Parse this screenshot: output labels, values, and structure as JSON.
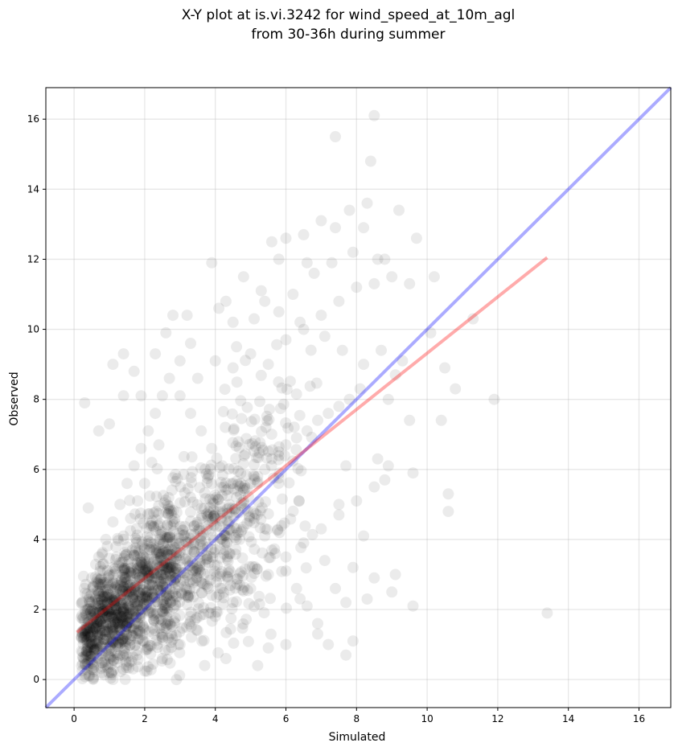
{
  "chart_data": {
    "type": "scatter",
    "title": "X-Y plot at is.vi.3242 for wind_speed_at_10m_agl",
    "subtitle": "from 30-36h during summer",
    "xlabel": "Simulated",
    "ylabel": "Observed",
    "xlim": [
      -0.8,
      16.9
    ],
    "ylim": [
      -0.8,
      16.9
    ],
    "xticks": [
      0,
      2,
      4,
      6,
      8,
      10,
      12,
      14,
      16
    ],
    "yticks": [
      0,
      2,
      4,
      6,
      8,
      10,
      12,
      14,
      16
    ],
    "grid": true,
    "point_color": "#000000",
    "point_opacity": 0.08,
    "point_count_approx": 1800,
    "points": [
      [
        0.3,
        7.9
      ],
      [
        0.4,
        4.9
      ],
      [
        0.7,
        7.1
      ],
      [
        1.0,
        7.3
      ],
      [
        1.4,
        9.3
      ],
      [
        1.1,
        9.0
      ],
      [
        1.7,
        8.8
      ],
      [
        1.9,
        8.1
      ],
      [
        1.4,
        8.1
      ],
      [
        2.3,
        9.3
      ],
      [
        2.6,
        9.9
      ],
      [
        2.8,
        10.4
      ],
      [
        3.2,
        10.4
      ],
      [
        3.3,
        9.6
      ],
      [
        3.9,
        11.9
      ],
      [
        4.1,
        10.6
      ],
      [
        4.3,
        10.8
      ],
      [
        4.6,
        9.5
      ],
      [
        5.1,
        10.3
      ],
      [
        5.4,
        10.8
      ],
      [
        5.6,
        12.5
      ],
      [
        6.0,
        12.6
      ],
      [
        5.8,
        12.0
      ],
      [
        6.5,
        12.7
      ],
      [
        6.6,
        11.9
      ],
      [
        7.0,
        13.1
      ],
      [
        7.4,
        12.9
      ],
      [
        7.4,
        15.5
      ],
      [
        7.8,
        13.4
      ],
      [
        8.3,
        13.6
      ],
      [
        8.4,
        14.8
      ],
      [
        8.5,
        16.1
      ],
      [
        8.2,
        12.9
      ],
      [
        8.8,
        12.0
      ],
      [
        9.2,
        13.4
      ],
      [
        9.0,
        11.5
      ],
      [
        8.5,
        11.3
      ],
      [
        9.7,
        12.6
      ],
      [
        10.2,
        11.5
      ],
      [
        9.5,
        11.3
      ],
      [
        10.1,
        9.9
      ],
      [
        10.5,
        8.9
      ],
      [
        10.8,
        8.3
      ],
      [
        10.4,
        7.4
      ],
      [
        9.5,
        7.4
      ],
      [
        9.6,
        5.9
      ],
      [
        10.6,
        5.3
      ],
      [
        10.6,
        4.8
      ],
      [
        11.9,
        8.0
      ],
      [
        11.3,
        10.3
      ],
      [
        9.6,
        2.1
      ],
      [
        9.1,
        3.0
      ],
      [
        9.0,
        2.5
      ],
      [
        8.5,
        2.9
      ],
      [
        8.3,
        2.3
      ],
      [
        13.4,
        1.9
      ],
      [
        8.2,
        4.1
      ],
      [
        7.9,
        3.2
      ],
      [
        7.7,
        2.2
      ],
      [
        7.4,
        2.6
      ],
      [
        7.9,
        1.1
      ],
      [
        7.7,
        0.7
      ],
      [
        7.2,
        1.0
      ],
      [
        6.9,
        1.3
      ],
      [
        6.0,
        1.0
      ],
      [
        5.5,
        0.9
      ],
      [
        5.2,
        0.4
      ],
      [
        4.3,
        0.6
      ],
      [
        3.7,
        0.4
      ],
      [
        2.9,
        0.0
      ],
      [
        8.8,
        5.7
      ],
      [
        8.6,
        6.3
      ],
      [
        8.9,
        8.0
      ],
      [
        9.1,
        8.7
      ],
      [
        9.3,
        9.1
      ],
      [
        8.7,
        9.4
      ],
      [
        8.9,
        6.1
      ],
      [
        7.7,
        6.1
      ],
      [
        7.5,
        5.0
      ],
      [
        7.1,
        3.4
      ],
      [
        0.5,
        0.3
      ],
      [
        0.7,
        0.6
      ],
      [
        0.9,
        0.9
      ],
      [
        1.1,
        1.1
      ],
      [
        1.3,
        1.4
      ],
      [
        1.5,
        1.6
      ],
      [
        1.6,
        2.0
      ],
      [
        1.8,
        2.1
      ],
      [
        2.0,
        2.3
      ],
      [
        2.2,
        2.5
      ],
      [
        2.4,
        2.8
      ],
      [
        2.6,
        3.0
      ],
      [
        2.8,
        3.2
      ],
      [
        3.0,
        3.4
      ],
      [
        3.2,
        3.7
      ],
      [
        3.4,
        3.9
      ],
      [
        3.6,
        4.1
      ],
      [
        3.8,
        4.4
      ],
      [
        4.0,
        4.6
      ],
      [
        4.2,
        4.8
      ],
      [
        4.4,
        5.0
      ],
      [
        4.6,
        5.2
      ],
      [
        4.8,
        5.4
      ],
      [
        5.0,
        5.6
      ],
      [
        5.2,
        5.8
      ],
      [
        5.4,
        6.0
      ],
      [
        5.6,
        6.3
      ],
      [
        5.8,
        6.5
      ],
      [
        6.0,
        6.7
      ],
      [
        6.3,
        6.9
      ],
      [
        6.6,
        7.1
      ],
      [
        6.9,
        7.4
      ],
      [
        7.2,
        7.6
      ],
      [
        7.5,
        7.8
      ],
      [
        7.8,
        8.0
      ],
      [
        8.1,
        8.3
      ],
      [
        0.4,
        1.3
      ],
      [
        0.6,
        1.9
      ],
      [
        0.8,
        2.4
      ],
      [
        1.0,
        3.0
      ],
      [
        1.2,
        3.5
      ],
      [
        1.4,
        4.1
      ],
      [
        1.6,
        4.6
      ],
      [
        1.8,
        5.1
      ],
      [
        2.0,
        5.6
      ],
      [
        2.2,
        6.2
      ],
      [
        2.4,
        6.7
      ],
      [
        0.5,
        2.9
      ],
      [
        0.7,
        3.5
      ],
      [
        0.9,
        4.0
      ],
      [
        1.1,
        4.5
      ],
      [
        1.3,
        5.0
      ],
      [
        1.5,
        5.6
      ],
      [
        1.7,
        6.1
      ],
      [
        1.9,
        6.6
      ],
      [
        2.1,
        7.1
      ],
      [
        2.3,
        7.6
      ],
      [
        2.5,
        8.1
      ],
      [
        2.7,
        8.6
      ],
      [
        3.0,
        8.1
      ],
      [
        3.3,
        7.6
      ],
      [
        3.6,
        7.1
      ],
      [
        3.9,
        6.6
      ],
      [
        4.2,
        6.1
      ],
      [
        4.5,
        5.6
      ],
      [
        4.8,
        5.1
      ],
      [
        5.1,
        4.6
      ],
      [
        5.4,
        4.1
      ],
      [
        5.7,
        3.6
      ],
      [
        6.0,
        3.1
      ],
      [
        6.3,
        2.6
      ],
      [
        6.6,
        2.1
      ],
      [
        6.9,
        1.6
      ],
      [
        2.5,
        0.6
      ],
      [
        3.0,
        1.0
      ],
      [
        3.5,
        1.4
      ],
      [
        4.0,
        1.8
      ],
      [
        4.5,
        2.2
      ],
      [
        5.0,
        2.6
      ],
      [
        5.5,
        3.0
      ],
      [
        6.0,
        3.5
      ],
      [
        6.5,
        3.9
      ],
      [
        7.0,
        4.3
      ],
      [
        7.5,
        4.7
      ],
      [
        8.0,
        5.1
      ],
      [
        8.5,
        5.5
      ],
      [
        3.0,
        9.1
      ],
      [
        3.5,
        8.6
      ],
      [
        4.0,
        9.1
      ],
      [
        4.5,
        8.9
      ],
      [
        5.0,
        9.3
      ],
      [
        5.5,
        9.0
      ],
      [
        6.0,
        9.7
      ],
      [
        6.5,
        10.0
      ],
      [
        7.0,
        10.4
      ],
      [
        7.5,
        10.8
      ],
      [
        8.0,
        11.2
      ],
      [
        6.2,
        11.0
      ],
      [
        6.8,
        11.6
      ],
      [
        7.3,
        11.9
      ],
      [
        7.9,
        12.2
      ],
      [
        8.6,
        12.0
      ],
      [
        5.3,
        11.1
      ],
      [
        4.8,
        11.5
      ],
      [
        4.5,
        10.2
      ],
      [
        5.8,
        10.5
      ],
      [
        6.4,
        10.2
      ],
      [
        7.1,
        9.8
      ],
      [
        7.6,
        9.4
      ],
      [
        8.2,
        9.0
      ]
    ]
  }
}
